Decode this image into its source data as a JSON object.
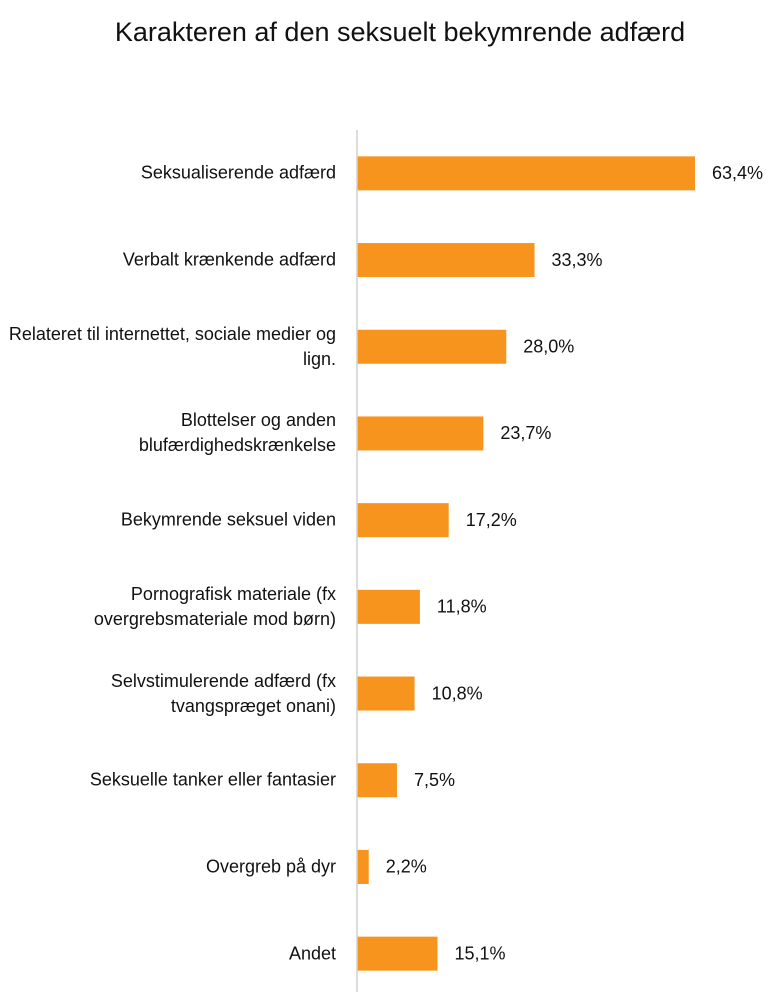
{
  "chart_data": {
    "type": "bar",
    "orientation": "horizontal",
    "title": "Karakteren af den seksuelt bekymrende adfærd",
    "categories": [
      "Seksualiserende adfærd",
      "Verbalt krænkende adfærd",
      "Relateret til internettet, sociale medier og lign.",
      "Blottelser og anden blufærdighedskrænkelse",
      "Bekymrende seksuel viden",
      "Pornografisk materiale (fx overgrebsmateriale mod børn)",
      "Selvstimulerende adfærd (fx tvangspræget onani)",
      "Seksuelle tanker eller fantasier",
      "Overgreb på dyr",
      "Andet"
    ],
    "values": [
      63.4,
      33.3,
      28.0,
      23.7,
      17.2,
      11.8,
      10.8,
      7.5,
      2.2,
      15.1
    ],
    "value_labels": [
      "63,4%",
      "33,3%",
      "28,0%",
      "23,7%",
      "17,2%",
      "11,8%",
      "10,8%",
      "7,5%",
      "2,2%",
      "15,1%"
    ],
    "color": "#f7941d"
  }
}
